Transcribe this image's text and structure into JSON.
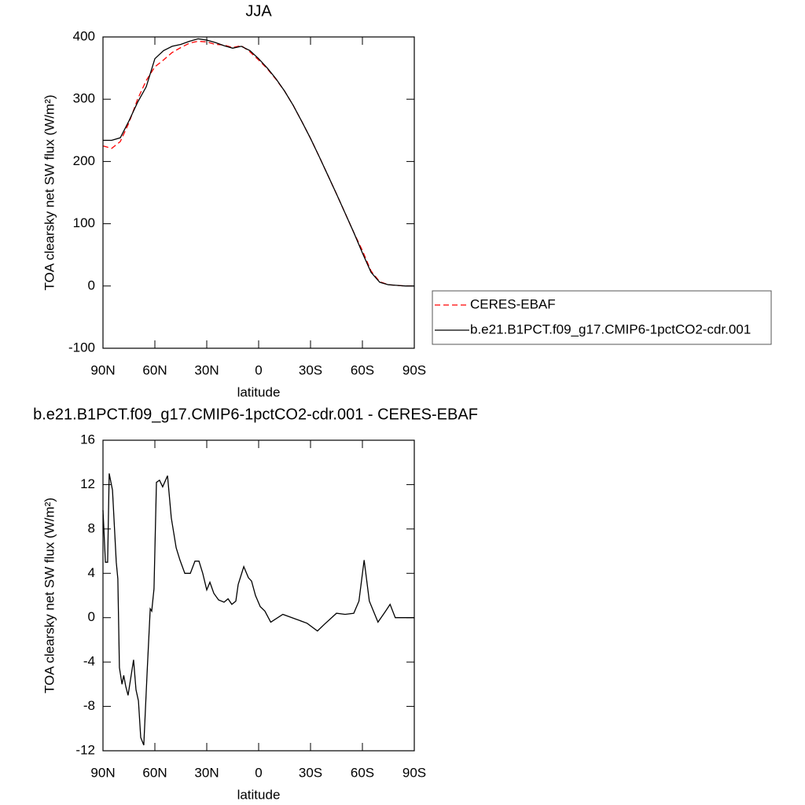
{
  "chart_data": [
    {
      "type": "line",
      "title": "JJA",
      "x_label": "latitude",
      "y_label": "TOA clearsky net SW flux (W/m²)",
      "xlim": [
        90,
        -90
      ],
      "xticks": [
        {
          "value": 90,
          "label": "90N"
        },
        {
          "value": 60,
          "label": "60N"
        },
        {
          "value": 30,
          "label": "30N"
        },
        0,
        {
          "value": -30,
          "label": "30S"
        },
        {
          "value": -60,
          "label": "60S"
        },
        {
          "value": -90,
          "label": "90S"
        }
      ],
      "ylim": [
        -100,
        400
      ],
      "yticks": [
        -100,
        0,
        100,
        200,
        300,
        400
      ],
      "legend": "right",
      "x": [
        90,
        85,
        80,
        75,
        70,
        65,
        60,
        55,
        50,
        45,
        40,
        35,
        30,
        25,
        20,
        15,
        10,
        5,
        0,
        -5,
        -10,
        -15,
        -20,
        -25,
        -30,
        -35,
        -40,
        -45,
        -50,
        -55,
        -60,
        -65,
        -70,
        -75,
        -80,
        -85,
        -90
      ],
      "series": [
        {
          "name": "CERES-EBAF",
          "color": "#ff0000",
          "line_style": "dashed",
          "values": [
            225,
            221,
            232,
            262,
            300,
            330,
            352,
            363,
            375,
            383,
            390,
            393,
            392,
            388,
            387,
            383,
            386,
            376,
            363,
            349,
            332,
            313,
            290,
            264,
            237,
            208,
            178,
            148,
            117,
            86,
            57,
            24,
            7,
            2,
            1,
            0,
            0
          ]
        },
        {
          "name": "b.e21.B1PCT.f09_g17.CMIP6-1pctCO2-cdr.001",
          "color": "#000000",
          "line_style": "solid",
          "values": [
            234,
            234,
            238,
            265,
            295,
            320,
            365,
            378,
            385,
            388,
            393,
            397,
            395,
            391,
            386,
            382,
            385,
            378,
            365,
            350,
            333,
            313,
            290,
            264,
            237,
            208,
            178,
            148,
            117,
            86,
            53,
            22,
            6,
            2,
            1,
            0,
            0
          ]
        }
      ]
    },
    {
      "type": "line",
      "title": "b.e21.B1PCT.f09_g17.CMIP6-1pctCO2-cdr.001 - CERES-EBAF",
      "x_label": "latitude",
      "y_label": "TOA clearsky net SW flux (W/m²)",
      "xlim": [
        90,
        -90
      ],
      "xticks": [
        {
          "value": 90,
          "label": "90N"
        },
        {
          "value": 60,
          "label": "60N"
        },
        {
          "value": 30,
          "label": "30N"
        },
        0,
        {
          "value": -30,
          "label": "30S"
        },
        {
          "value": -60,
          "label": "60S"
        },
        {
          "value": -90,
          "label": "90S"
        }
      ],
      "ylim": [
        -12,
        16
      ],
      "yticks": [
        -12,
        -8,
        -4,
        0,
        4,
        8,
        12,
        16
      ],
      "color": "#000000",
      "x": [
        90,
        88.6,
        87.3,
        86.4,
        84.5,
        82.3,
        81.4,
        80.5,
        79,
        78,
        76.8,
        75.5,
        74,
        72.3,
        70.9,
        69.5,
        68.2,
        66.4,
        64.5,
        62.7,
        61.8,
        60.5,
        59.1,
        57.3,
        55.5,
        52.7,
        50.5,
        47.7,
        45.5,
        42.7,
        39.5,
        36.8,
        34.5,
        32.3,
        30,
        28.2,
        25.9,
        23.2,
        20,
        17.7,
        15.5,
        13.2,
        11.8,
        8.6,
        5.9,
        4.1,
        1.8,
        -0.9,
        -3.6,
        -7,
        -14,
        -21,
        -28,
        -34,
        -38,
        -45,
        -50,
        -55,
        -58,
        -61,
        -64,
        -69,
        -73,
        -76,
        -79,
        -90
      ],
      "values": [
        9.7,
        5,
        5,
        13,
        11.5,
        5,
        3.5,
        -4.5,
        -6,
        -5.2,
        -6.2,
        -7,
        -5.5,
        -3.8,
        -6.5,
        -7.5,
        -10.8,
        -11.5,
        -5,
        0.8,
        0.6,
        2.6,
        12.2,
        12.4,
        11.8,
        12.8,
        9,
        6.3,
        5.2,
        4,
        4,
        5.1,
        5.1,
        4,
        2.5,
        3.2,
        2.2,
        1.6,
        1.4,
        1.7,
        1.2,
        1.5,
        3,
        4.6,
        3.6,
        3.3,
        2,
        1,
        0.6,
        -0.4,
        0.3,
        -0.1,
        -0.5,
        -1.2,
        -0.6,
        0.4,
        0.3,
        0.4,
        1.5,
        5.2,
        1.5,
        -0.4,
        0.5,
        1.2,
        0,
        0
      ]
    }
  ]
}
